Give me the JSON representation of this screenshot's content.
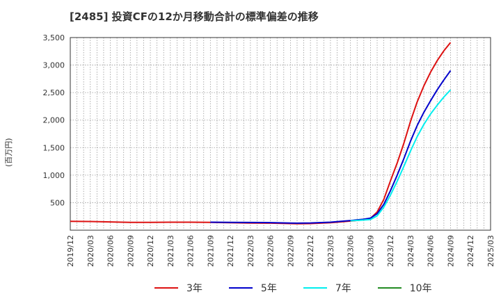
{
  "chart_data": {
    "type": "line",
    "title": "[2485]  投資CFの12か月移動合計の標準偏差の推移",
    "ylabel": "(百万円)",
    "xlabel": "",
    "ylim": [
      0,
      3500
    ],
    "grid": true,
    "legend_position": "bottom",
    "x_ticks": [
      "2019/12",
      "2020/03",
      "2020/06",
      "2020/09",
      "2020/12",
      "2021/03",
      "2021/06",
      "2021/09",
      "2021/12",
      "2022/03",
      "2022/06",
      "2022/09",
      "2022/12",
      "2023/03",
      "2023/06",
      "2023/09",
      "2023/12",
      "2024/03",
      "2024/06",
      "2024/09",
      "2024/12",
      "2025/03"
    ],
    "y_ticks": [
      500,
      1000,
      1500,
      2000,
      2500,
      3000,
      3500
    ],
    "y_tick_labels": [
      "500",
      "1,000",
      "1,500",
      "2,000",
      "2,500",
      "3,000",
      "3,500"
    ],
    "series": [
      {
        "name": "3年",
        "color": "#dd1111",
        "x": [
          "2019/12",
          "2020/03",
          "2020/06",
          "2020/09",
          "2020/12",
          "2021/03",
          "2021/06",
          "2021/09",
          "2021/12",
          "2022/03",
          "2022/06",
          "2022/09",
          "2022/10",
          "2022/12",
          "2023/03",
          "2023/06",
          "2023/08",
          "2023/09",
          "2023/10",
          "2023/11",
          "2023/12",
          "2024/01",
          "2024/02",
          "2024/03",
          "2024/04",
          "2024/05",
          "2024/06",
          "2024/07",
          "2024/08",
          "2024/09"
        ],
        "values": [
          160,
          158,
          150,
          143,
          143,
          145,
          145,
          143,
          135,
          130,
          128,
          120,
          117,
          120,
          135,
          165,
          190,
          215,
          330,
          560,
          900,
          1220,
          1580,
          1980,
          2330,
          2620,
          2870,
          3080,
          3260,
          3410
        ]
      },
      {
        "name": "5年",
        "color": "#0000cc",
        "x": [
          "2021/09",
          "2021/12",
          "2022/03",
          "2022/06",
          "2022/09",
          "2022/10",
          "2022/12",
          "2023/03",
          "2023/06",
          "2023/08",
          "2023/09",
          "2023/10",
          "2023/11",
          "2023/12",
          "2024/01",
          "2024/02",
          "2024/03",
          "2024/04",
          "2024/05",
          "2024/06",
          "2024/07",
          "2024/08",
          "2024/09"
        ],
        "values": [
          145,
          142,
          140,
          138,
          130,
          128,
          132,
          145,
          175,
          200,
          220,
          300,
          470,
          720,
          1000,
          1300,
          1620,
          1900,
          2140,
          2350,
          2550,
          2730,
          2900
        ]
      },
      {
        "name": "7年",
        "color": "#00eeee",
        "x": [
          "2023/06",
          "2023/08",
          "2023/09",
          "2023/10",
          "2023/11",
          "2023/12",
          "2024/01",
          "2024/02",
          "2024/03",
          "2024/04",
          "2024/05",
          "2024/06",
          "2024/07",
          "2024/08",
          "2024/09"
        ],
        "values": [
          170,
          185,
          195,
          260,
          420,
          640,
          890,
          1160,
          1440,
          1700,
          1920,
          2110,
          2270,
          2420,
          2550
        ]
      },
      {
        "name": "10年",
        "color": "#228b22",
        "x": [],
        "values": []
      }
    ]
  }
}
